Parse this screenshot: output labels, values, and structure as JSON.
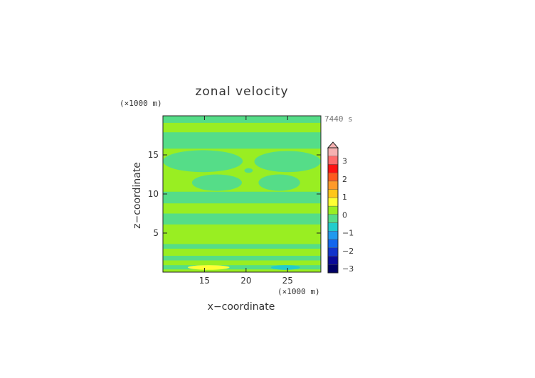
{
  "chart_data": {
    "type": "heatmap",
    "title": "zonal velocity",
    "xlabel": "x−coordinate",
    "ylabel": "z−coordinate",
    "x_unit": "(×1000 m)",
    "y_unit": "(×1000 m)",
    "time_label": "7440 s",
    "xlim": [
      10,
      29
    ],
    "ylim": [
      0,
      20
    ],
    "x_ticks": [
      15,
      20,
      25
    ],
    "y_ticks": [
      5,
      10,
      15
    ],
    "colorbar": {
      "tick_labels": [
        "3",
        "2",
        "1",
        "0",
        "−1",
        "−2",
        "−3"
      ],
      "tick_values": [
        3,
        2,
        1,
        0,
        -1,
        -2,
        -3
      ],
      "levels": [
        3.5,
        3,
        2.5,
        2,
        1.5,
        1,
        0.5,
        0,
        -0.5,
        -1,
        -1.5,
        -2,
        -2.5,
        -3
      ],
      "colors": [
        "#f6b1b1",
        "#ff6b6b",
        "#ff1111",
        "#ff5a1e",
        "#ff9a2a",
        "#ffc61a",
        "#ffff33",
        "#99ee22",
        "#55dd88",
        "#22cccc",
        "#2299ee",
        "#1166ee",
        "#1133cc",
        "#0a0a99",
        "#000066"
      ]
    },
    "bands": [
      {
        "z": [
          0.0,
          0.35
        ],
        "value": 0.3
      },
      {
        "z": [
          0.35,
          0.9
        ],
        "value": -0.2
      },
      {
        "z": [
          0.9,
          1.5
        ],
        "value": 0.3
      },
      {
        "z": [
          1.5,
          2.1
        ],
        "value": -0.2
      },
      {
        "z": [
          2.1,
          3.0
        ],
        "value": 0.3
      },
      {
        "z": [
          3.0,
          3.6
        ],
        "value": -0.2
      },
      {
        "z": [
          3.6,
          6.1
        ],
        "value": 0.3
      },
      {
        "z": [
          6.1,
          7.5
        ],
        "value": -0.2
      },
      {
        "z": [
          7.5,
          8.8
        ],
        "value": 0.3
      },
      {
        "z": [
          8.8,
          10.3
        ],
        "value": -0.2
      },
      {
        "z": [
          10.3,
          15.8
        ],
        "value": 0.3
      },
      {
        "z": [
          15.8,
          17.9
        ],
        "value": -0.2
      },
      {
        "z": [
          17.9,
          19.1
        ],
        "value": 0.3
      },
      {
        "z": [
          19.1,
          20.0
        ],
        "value": -0.2
      }
    ],
    "regions": [
      {
        "x": [
          10,
          19.6
        ],
        "z": [
          12.8,
          15.6
        ],
        "value": -0.2
      },
      {
        "x": [
          19.8,
          20.8
        ],
        "z": [
          12.7,
          13.3
        ],
        "value": -0.2
      },
      {
        "x": [
          21.0,
          29
        ],
        "z": [
          12.8,
          15.5
        ],
        "value": -0.2
      },
      {
        "x": [
          13.5,
          19.5
        ],
        "z": [
          10.4,
          12.5
        ],
        "value": -0.2
      },
      {
        "x": [
          21.5,
          26.5
        ],
        "z": [
          10.4,
          12.5
        ],
        "value": -0.2
      },
      {
        "x": [
          13.0,
          18.0
        ],
        "z": [
          0.3,
          0.9
        ],
        "value": 0.9
      },
      {
        "x": [
          23.0,
          26.5
        ],
        "z": [
          0.3,
          0.9
        ],
        "value": -0.8
      }
    ]
  }
}
